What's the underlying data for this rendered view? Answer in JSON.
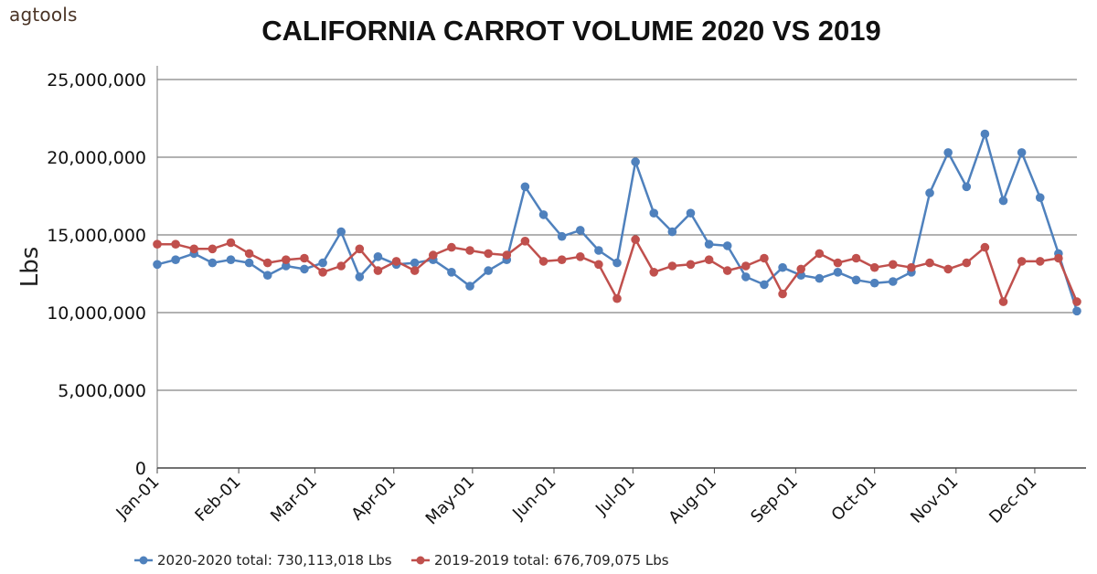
{
  "brand": "agtools",
  "chart_data": {
    "type": "line",
    "title": "CALIFORNIA CARROT VOLUME 2020 VS 2019",
    "xlabel": "",
    "ylabel": "Lbs",
    "ylim": [
      0,
      25000000
    ],
    "yticks": [
      0,
      5000000,
      10000000,
      15000000,
      20000000,
      25000000
    ],
    "ytick_labels": [
      "0",
      "5,000,000",
      "10,000,000",
      "15,000,000",
      "20,000,000",
      "25,000,000"
    ],
    "xticks": [
      {
        "label": "Jan-01",
        "week": 0
      },
      {
        "label": "Feb-01",
        "week": 4.43
      },
      {
        "label": "Mar-01",
        "week": 8.57
      },
      {
        "label": "Apr-01",
        "week": 12.86
      },
      {
        "label": "May-01",
        "week": 17.14
      },
      {
        "label": "Jun-01",
        "week": 21.57
      },
      {
        "label": "Jul-01",
        "week": 25.86
      },
      {
        "label": "Aug-01",
        "week": 30.29
      },
      {
        "label": "Sep-01",
        "week": 34.71
      },
      {
        "label": "Oct-01",
        "week": 39.0
      },
      {
        "label": "Nov-01",
        "week": 43.43
      },
      {
        "label": "Dec-01",
        "week": 47.71
      }
    ],
    "grid": true,
    "legend_position": "bottom",
    "series": [
      {
        "name": "2020-2020 total: 730,113,018 Lbs",
        "color": "#4f81bd",
        "values": [
          13100000,
          13400000,
          13800000,
          13200000,
          13400000,
          13200000,
          12400000,
          13000000,
          12800000,
          13200000,
          15200000,
          12300000,
          13600000,
          13100000,
          13200000,
          13400000,
          12600000,
          11700000,
          12700000,
          13400000,
          18100000,
          16300000,
          14900000,
          15300000,
          14000000,
          13200000,
          19700000,
          16400000,
          15200000,
          16400000,
          14400000,
          14300000,
          12300000,
          11800000,
          12900000,
          12400000,
          12200000,
          12600000,
          12100000,
          11900000,
          12000000,
          12600000,
          17700000,
          20300000,
          18100000,
          21500000,
          17200000,
          20300000,
          17400000,
          13800000,
          10100000
        ]
      },
      {
        "name": "2019-2019 total: 676,709,075 Lbs",
        "color": "#c0504d",
        "values": [
          14400000,
          14400000,
          14100000,
          14100000,
          14500000,
          13800000,
          13200000,
          13400000,
          13500000,
          12600000,
          13000000,
          14100000,
          12700000,
          13300000,
          12700000,
          13700000,
          14200000,
          14000000,
          13800000,
          13700000,
          14600000,
          13300000,
          13400000,
          13600000,
          13100000,
          10900000,
          14700000,
          12600000,
          13000000,
          13100000,
          13400000,
          12700000,
          13000000,
          13500000,
          11200000,
          12800000,
          13800000,
          13200000,
          13500000,
          12900000,
          13100000,
          12900000,
          13200000,
          12800000,
          13200000,
          14200000,
          10700000,
          13300000,
          13300000,
          13500000,
          10700000
        ]
      }
    ]
  }
}
